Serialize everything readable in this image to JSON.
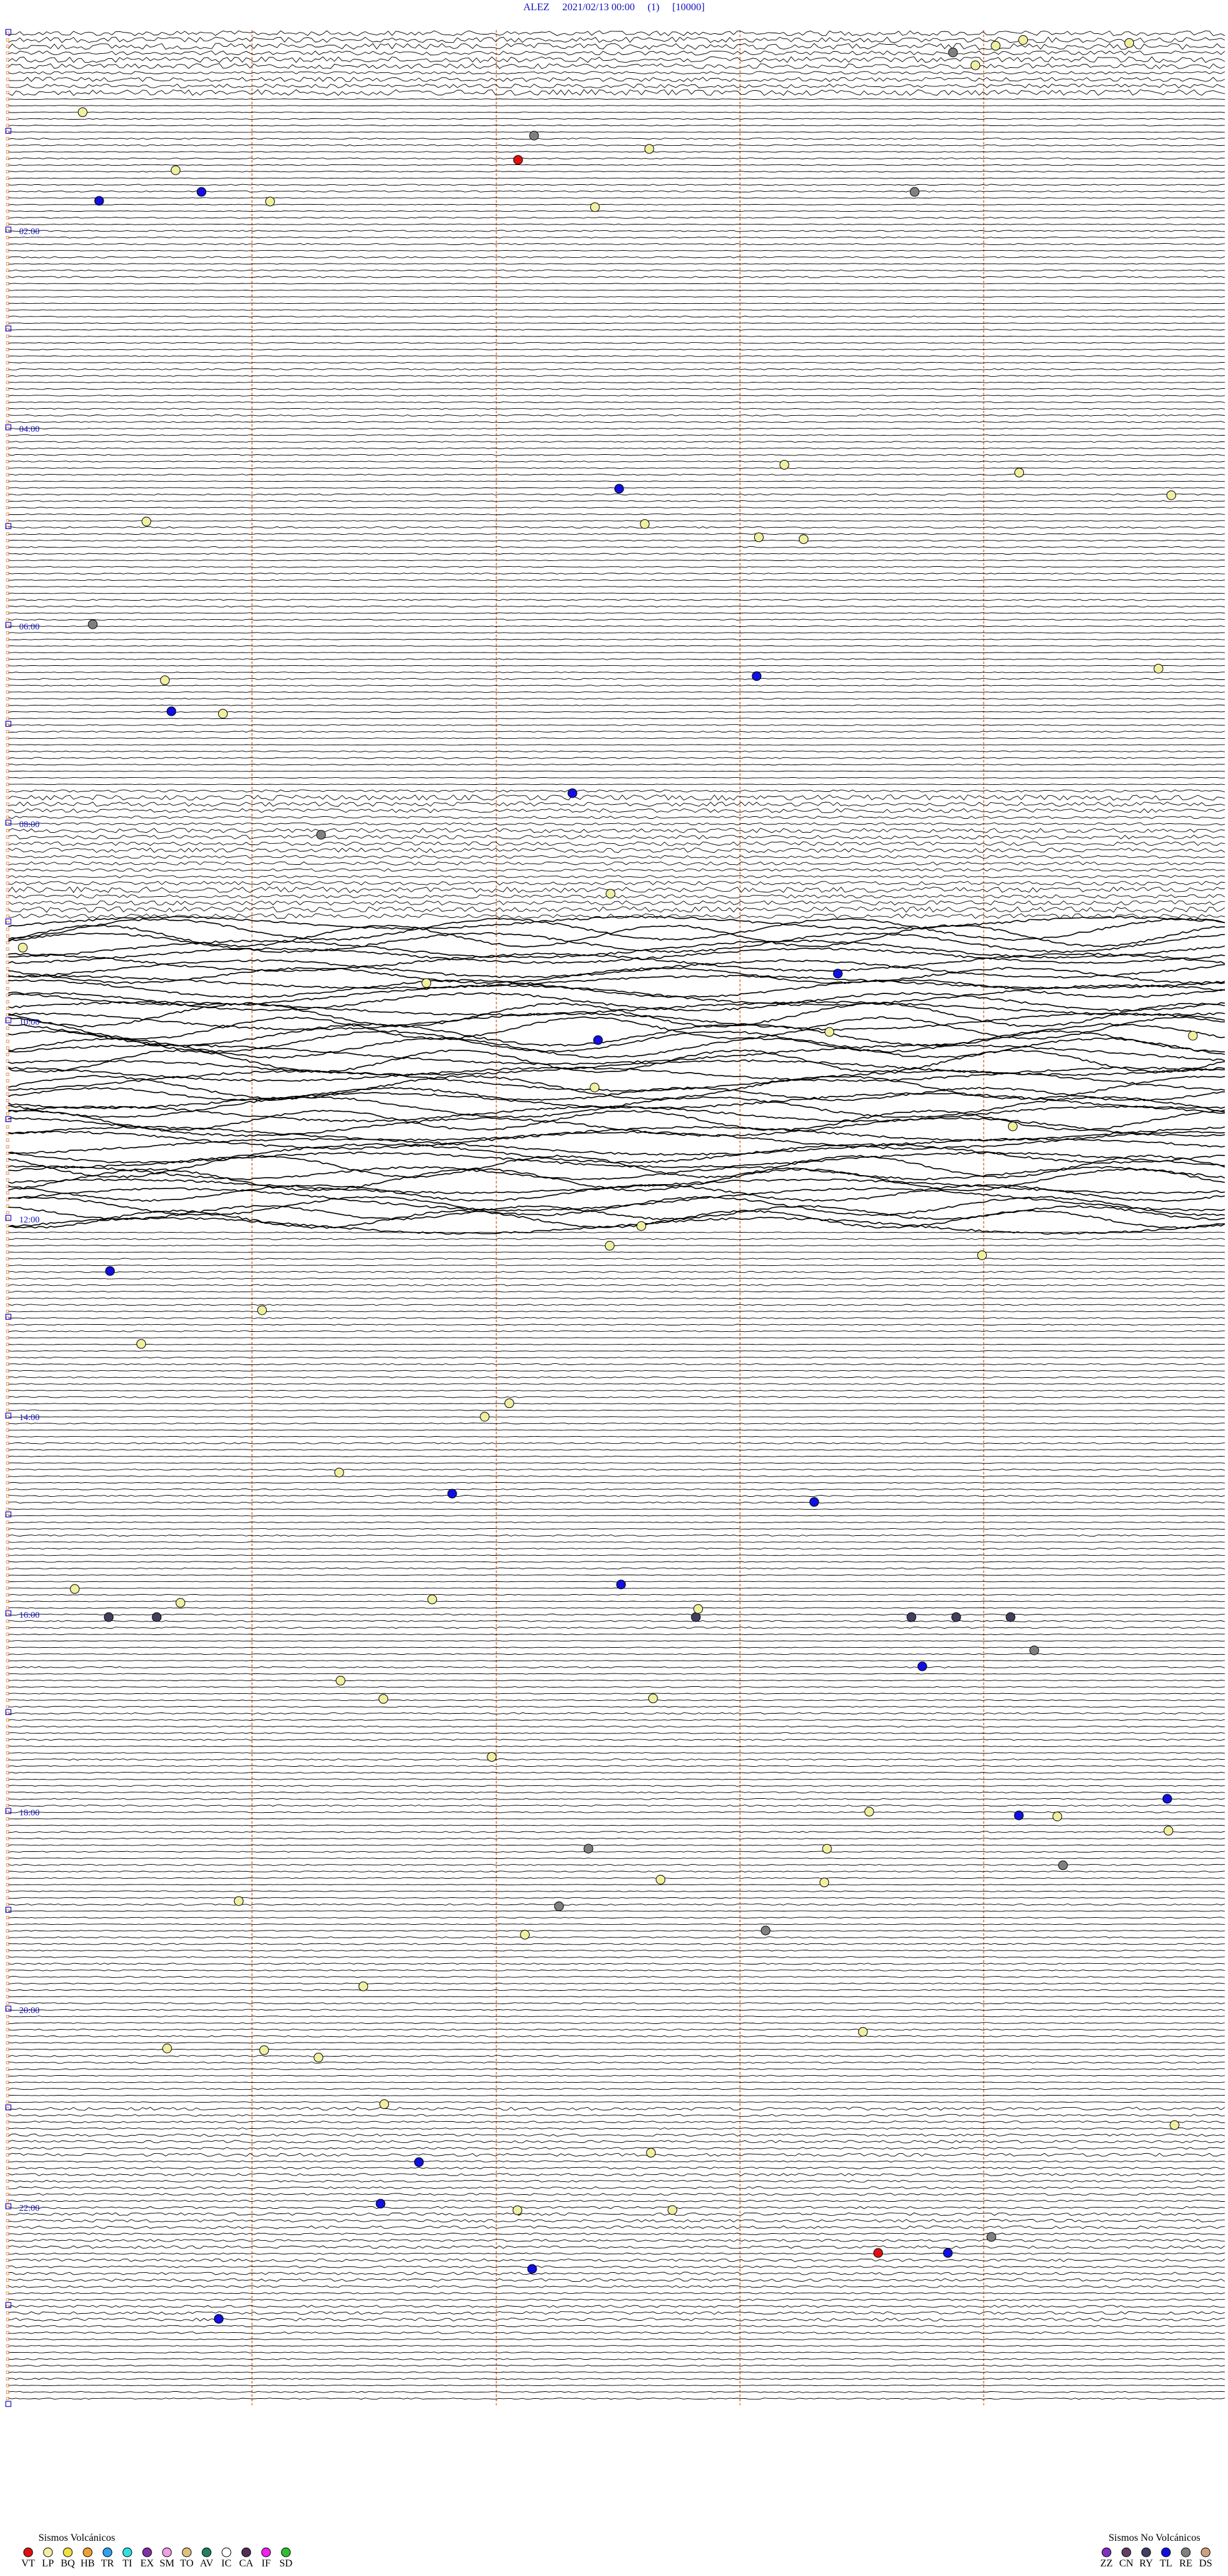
{
  "header": {
    "title": "ALEZ     2021/02/13 00:00     (1)     [10000]"
  },
  "hour_labels": [
    "02:00",
    "04:00",
    "06:00",
    "08:00",
    "10:00",
    "12:00",
    "14:00",
    "16:00",
    "18:00",
    "20:00",
    "22:00"
  ],
  "legend_volcanic": {
    "title": "Sismos Volcánicos",
    "items": [
      {
        "label": "VT",
        "color": "#e01010"
      },
      {
        "label": "LP",
        "color": "#f0f0a0"
      },
      {
        "label": "BQ",
        "color": "#f0e040"
      },
      {
        "label": "HB",
        "color": "#f0a030"
      },
      {
        "label": "TR",
        "color": "#30a0f0"
      },
      {
        "label": "TI",
        "color": "#30e0e0"
      },
      {
        "label": "EX",
        "color": "#8030a0"
      },
      {
        "label": "SM",
        "color": "#f0a0e0"
      },
      {
        "label": "TO",
        "color": "#e0c080"
      },
      {
        "label": "AV",
        "color": "#208060"
      },
      {
        "label": "IC",
        "color": "#ffffff"
      },
      {
        "label": "CA",
        "color": "#503050"
      },
      {
        "label": "IF",
        "color": "#f020f0"
      },
      {
        "label": "SD",
        "color": "#30c030"
      }
    ]
  },
  "legend_non_volcanic": {
    "title": "Sismos No Volcánicos",
    "items": [
      {
        "label": "ZZ",
        "color": "#8030c0"
      },
      {
        "label": "CN",
        "color": "#604060"
      },
      {
        "label": "RY",
        "color": "#404060"
      },
      {
        "label": "TL",
        "color": "#1010e0"
      },
      {
        "label": "RE",
        "color": "#808080"
      },
      {
        "label": "DS",
        "color": "#d0a080"
      }
    ]
  }
}
